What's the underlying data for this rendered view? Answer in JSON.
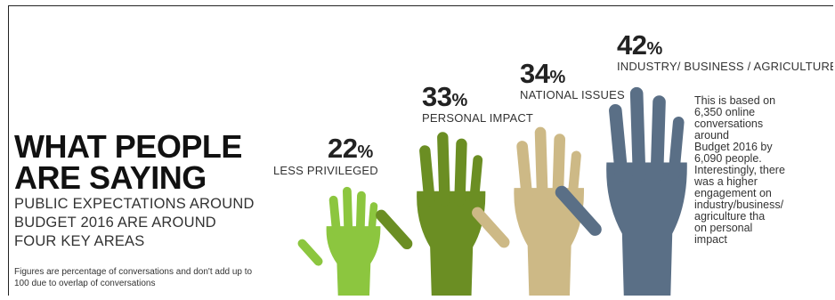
{
  "title_lines": [
    "WHAT PEOPLE",
    "ARE SAYING"
  ],
  "subtitle_lines": [
    "PUBLIC EXPECTATIONS AROUND",
    "BUDGET 2016 ARE AROUND",
    "FOUR KEY AREAS"
  ],
  "footnote_lines": [
    "Figures are percentage of conversations and don't add up to",
    "100 due to overlap of conversations"
  ],
  "note_lines": [
    "This is based on",
    "6,350 online",
    "conversations",
    "around",
    "Budget 2016 by",
    "6,090 people.",
    "Interestingly, there",
    "was a higher",
    "engagement on",
    "industry/business/",
    "agriculture tha",
    "on personal",
    "impact"
  ],
  "pct_sign": "%",
  "chart_data": {
    "type": "bar",
    "categories": [
      "LESS PRIVILEGED",
      "PERSONAL IMPACT",
      "NATIONAL ISSUES",
      "INDUSTRY/ BUSINESS / AGRICULTURE"
    ],
    "values": [
      22,
      33,
      34,
      42
    ],
    "value_labels": [
      "22",
      "33",
      "34",
      "42"
    ],
    "unit": "%",
    "colors": [
      "#8cc63f",
      "#6b8e23",
      "#cdb986",
      "#5a6f86"
    ],
    "mark": "raised-hand"
  }
}
